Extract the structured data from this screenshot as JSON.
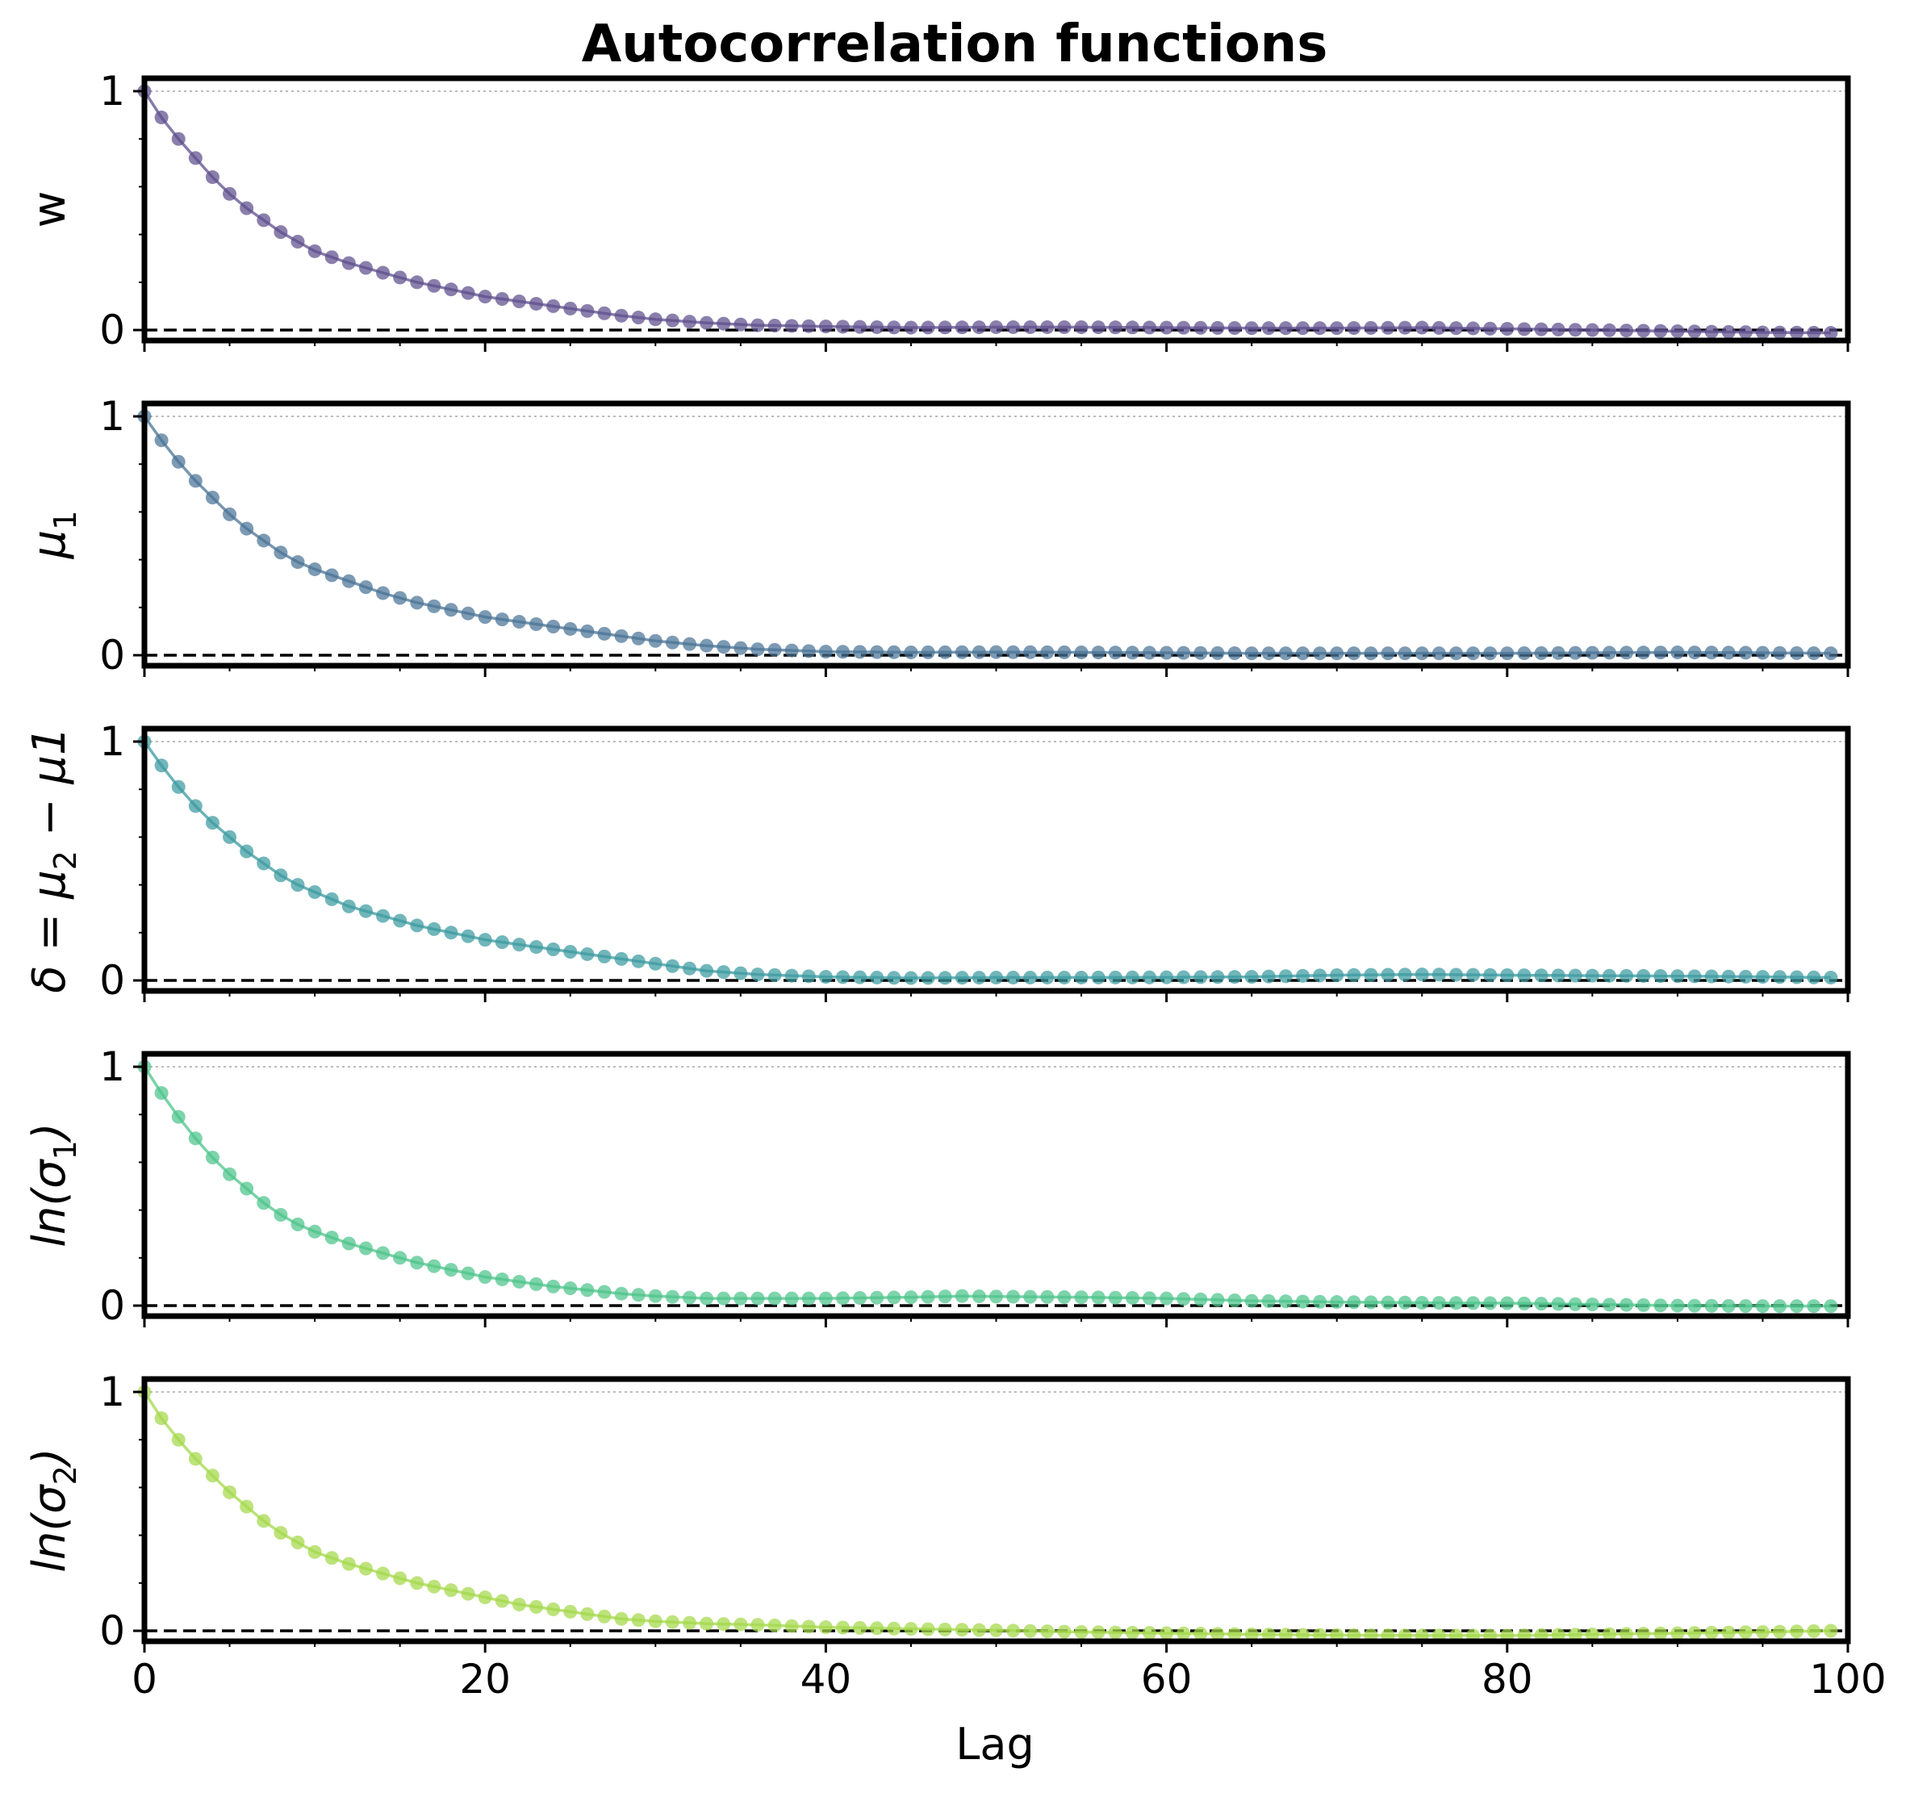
{
  "chart_data": {
    "type": "line",
    "title": "Autocorrelation functions",
    "xlabel": "Lag",
    "xlim": [
      0,
      100
    ],
    "x_ticks": [
      0,
      20,
      40,
      60,
      80,
      100
    ],
    "x_tick_labels": [
      "0",
      "20",
      "40",
      "60",
      "80",
      "100"
    ],
    "y_ticks": [
      0,
      1
    ],
    "y_tick_labels": [
      "0",
      "1"
    ],
    "ylim": [
      -0.05,
      1.05
    ],
    "reference_lines": [
      {
        "y": 0,
        "style": "dashed",
        "color": "#000000"
      },
      {
        "y": 1,
        "style": "dotted",
        "color": "#bbbbbb"
      }
    ],
    "panels": [
      {
        "ylabel": "w",
        "ylabel_main": "w",
        "ylabel_sub": "",
        "ylabel_tail": "",
        "color": "#5d4e8c",
        "anchors": [
          [
            0,
            1.0
          ],
          [
            1,
            0.89
          ],
          [
            2,
            0.8
          ],
          [
            3,
            0.72
          ],
          [
            4,
            0.64
          ],
          [
            5,
            0.57
          ],
          [
            6,
            0.51
          ],
          [
            7,
            0.46
          ],
          [
            8,
            0.41
          ],
          [
            9,
            0.37
          ],
          [
            10,
            0.33
          ],
          [
            12,
            0.28
          ],
          [
            14,
            0.24
          ],
          [
            16,
            0.2
          ],
          [
            18,
            0.17
          ],
          [
            20,
            0.14
          ],
          [
            22,
            0.12
          ],
          [
            24,
            0.1
          ],
          [
            26,
            0.08
          ],
          [
            28,
            0.06
          ],
          [
            30,
            0.045
          ],
          [
            33,
            0.03
          ],
          [
            36,
            0.02
          ],
          [
            40,
            0.015
          ],
          [
            45,
            0.01
          ],
          [
            50,
            0.012
          ],
          [
            55,
            0.012
          ],
          [
            60,
            0.01
          ],
          [
            65,
            0.008
          ],
          [
            70,
            0.008
          ],
          [
            75,
            0.01
          ],
          [
            80,
            0.005
          ],
          [
            85,
            0.0
          ],
          [
            90,
            -0.005
          ],
          [
            95,
            -0.01
          ],
          [
            99,
            -0.012
          ]
        ]
      },
      {
        "ylabel": "μ1",
        "ylabel_main": "μ",
        "ylabel_sub": "1",
        "ylabel_tail": "",
        "color": "#4a7396",
        "anchors": [
          [
            0,
            1.0
          ],
          [
            1,
            0.9
          ],
          [
            2,
            0.81
          ],
          [
            3,
            0.73
          ],
          [
            4,
            0.66
          ],
          [
            5,
            0.59
          ],
          [
            6,
            0.53
          ],
          [
            7,
            0.48
          ],
          [
            8,
            0.43
          ],
          [
            9,
            0.39
          ],
          [
            10,
            0.36
          ],
          [
            12,
            0.31
          ],
          [
            14,
            0.26
          ],
          [
            16,
            0.22
          ],
          [
            18,
            0.19
          ],
          [
            20,
            0.16
          ],
          [
            22,
            0.14
          ],
          [
            24,
            0.12
          ],
          [
            26,
            0.1
          ],
          [
            28,
            0.08
          ],
          [
            30,
            0.06
          ],
          [
            33,
            0.04
          ],
          [
            36,
            0.025
          ],
          [
            40,
            0.015
          ],
          [
            45,
            0.012
          ],
          [
            50,
            0.013
          ],
          [
            55,
            0.012
          ],
          [
            60,
            0.01
          ],
          [
            65,
            0.008
          ],
          [
            70,
            0.008
          ],
          [
            75,
            0.008
          ],
          [
            80,
            0.008
          ],
          [
            85,
            0.01
          ],
          [
            90,
            0.012
          ],
          [
            95,
            0.01
          ],
          [
            99,
            0.008
          ]
        ]
      },
      {
        "ylabel": "δ = μ2 − μ1",
        "ylabel_main": "δ = μ",
        "ylabel_sub": "2",
        "ylabel_tail": " − μ1",
        "color": "#3a9aa0",
        "anchors": [
          [
            0,
            1.0
          ],
          [
            1,
            0.9
          ],
          [
            2,
            0.81
          ],
          [
            3,
            0.73
          ],
          [
            4,
            0.66
          ],
          [
            5,
            0.6
          ],
          [
            6,
            0.54
          ],
          [
            7,
            0.49
          ],
          [
            8,
            0.44
          ],
          [
            9,
            0.4
          ],
          [
            10,
            0.37
          ],
          [
            12,
            0.31
          ],
          [
            14,
            0.27
          ],
          [
            16,
            0.23
          ],
          [
            18,
            0.2
          ],
          [
            20,
            0.17
          ],
          [
            22,
            0.15
          ],
          [
            24,
            0.13
          ],
          [
            26,
            0.11
          ],
          [
            28,
            0.09
          ],
          [
            30,
            0.07
          ],
          [
            33,
            0.04
          ],
          [
            36,
            0.025
          ],
          [
            40,
            0.015
          ],
          [
            45,
            0.01
          ],
          [
            50,
            0.012
          ],
          [
            55,
            0.012
          ],
          [
            60,
            0.013
          ],
          [
            65,
            0.015
          ],
          [
            70,
            0.022
          ],
          [
            75,
            0.025
          ],
          [
            80,
            0.022
          ],
          [
            85,
            0.02
          ],
          [
            90,
            0.018
          ],
          [
            95,
            0.015
          ],
          [
            99,
            0.012
          ]
        ]
      },
      {
        "ylabel": "ln(σ1)",
        "ylabel_main": "ln(σ",
        "ylabel_sub": "1",
        "ylabel_tail": ")",
        "color": "#4cc48a",
        "anchors": [
          [
            0,
            1.0
          ],
          [
            1,
            0.89
          ],
          [
            2,
            0.79
          ],
          [
            3,
            0.7
          ],
          [
            4,
            0.62
          ],
          [
            5,
            0.55
          ],
          [
            6,
            0.49
          ],
          [
            7,
            0.43
          ],
          [
            8,
            0.38
          ],
          [
            9,
            0.34
          ],
          [
            10,
            0.31
          ],
          [
            12,
            0.26
          ],
          [
            14,
            0.22
          ],
          [
            16,
            0.18
          ],
          [
            18,
            0.15
          ],
          [
            20,
            0.12
          ],
          [
            22,
            0.1
          ],
          [
            24,
            0.08
          ],
          [
            26,
            0.065
          ],
          [
            28,
            0.05
          ],
          [
            30,
            0.04
          ],
          [
            33,
            0.03
          ],
          [
            36,
            0.03
          ],
          [
            40,
            0.03
          ],
          [
            45,
            0.035
          ],
          [
            48,
            0.04
          ],
          [
            50,
            0.038
          ],
          [
            55,
            0.035
          ],
          [
            60,
            0.03
          ],
          [
            65,
            0.02
          ],
          [
            70,
            0.015
          ],
          [
            75,
            0.012
          ],
          [
            80,
            0.01
          ],
          [
            85,
            0.005
          ],
          [
            90,
            0.0
          ],
          [
            95,
            -0.002
          ],
          [
            99,
            -0.002
          ]
        ]
      },
      {
        "ylabel": "ln(σ2)",
        "ylabel_main": "ln(σ",
        "ylabel_sub": "2",
        "ylabel_tail": ")",
        "color": "#a3d84a",
        "anchors": [
          [
            0,
            1.0
          ],
          [
            1,
            0.89
          ],
          [
            2,
            0.8
          ],
          [
            3,
            0.72
          ],
          [
            4,
            0.65
          ],
          [
            5,
            0.58
          ],
          [
            6,
            0.52
          ],
          [
            7,
            0.46
          ],
          [
            8,
            0.41
          ],
          [
            9,
            0.37
          ],
          [
            10,
            0.33
          ],
          [
            12,
            0.28
          ],
          [
            14,
            0.24
          ],
          [
            16,
            0.2
          ],
          [
            18,
            0.17
          ],
          [
            20,
            0.14
          ],
          [
            22,
            0.11
          ],
          [
            24,
            0.09
          ],
          [
            26,
            0.07
          ],
          [
            28,
            0.05
          ],
          [
            30,
            0.04
          ],
          [
            33,
            0.03
          ],
          [
            36,
            0.025
          ],
          [
            40,
            0.015
          ],
          [
            45,
            0.008
          ],
          [
            50,
            0.002
          ],
          [
            55,
            -0.005
          ],
          [
            60,
            -0.01
          ],
          [
            65,
            -0.015
          ],
          [
            70,
            -0.018
          ],
          [
            75,
            -0.02
          ],
          [
            80,
            -0.02
          ],
          [
            85,
            -0.015
          ],
          [
            90,
            -0.01
          ],
          [
            95,
            -0.005
          ],
          [
            99,
            0.0
          ]
        ]
      }
    ]
  }
}
